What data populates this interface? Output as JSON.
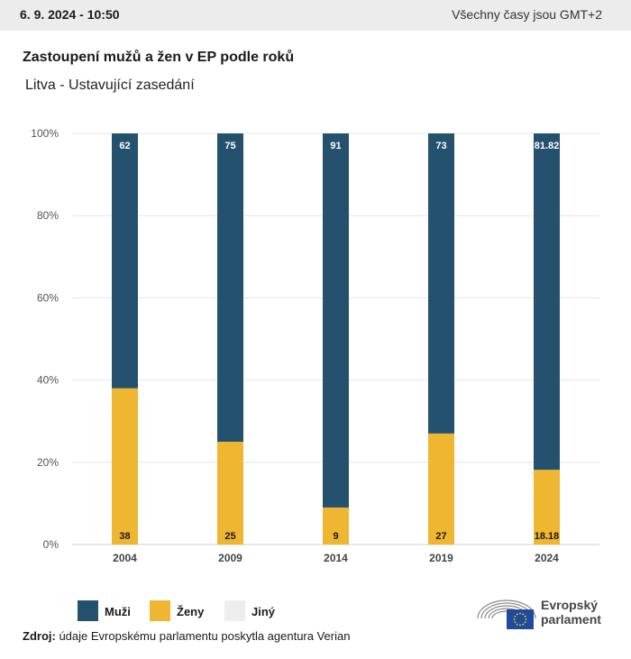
{
  "header": {
    "date": "6. 9. 2024 - 10:50",
    "timezone": "Všechny časy jsou GMT+2"
  },
  "title": "Zastoupení mužů a žen v EP podle roků",
  "subtitle": "Litva - Ustavující zasedání",
  "colors": {
    "men": "#24526e",
    "women": "#efb632",
    "other": "#eeeeee",
    "eu_blue": "#1f4b9c",
    "eu_star": "#ffd700"
  },
  "chart_data": {
    "type": "bar",
    "stacked": true,
    "categories": [
      "2004",
      "2009",
      "2014",
      "2019",
      "2024"
    ],
    "series": [
      {
        "name": "Ženy",
        "values": [
          38,
          25,
          9,
          27,
          18.18
        ],
        "labels": [
          "38",
          "25",
          "9",
          "27",
          "18.18"
        ]
      },
      {
        "name": "Muži",
        "values": [
          62,
          75,
          91,
          73,
          81.82
        ],
        "labels": [
          "62",
          "75",
          "91",
          "73",
          "81.82"
        ]
      }
    ],
    "ylim": [
      0,
      100
    ],
    "yticks": [
      "0%",
      "20%",
      "40%",
      "60%",
      "80%",
      "100%"
    ],
    "grid": true
  },
  "legend": {
    "items": [
      {
        "label": "Muži",
        "color": "#24526e"
      },
      {
        "label": "Ženy",
        "color": "#efb632"
      },
      {
        "label": "Jiný",
        "color": "#eeeeee"
      }
    ]
  },
  "source": {
    "prefix": "Zdroj:",
    "text": " údaje Evropskému parlamentu poskytla agentura Verian"
  },
  "logo": {
    "line1": "Evropský",
    "line2": "parlament"
  }
}
